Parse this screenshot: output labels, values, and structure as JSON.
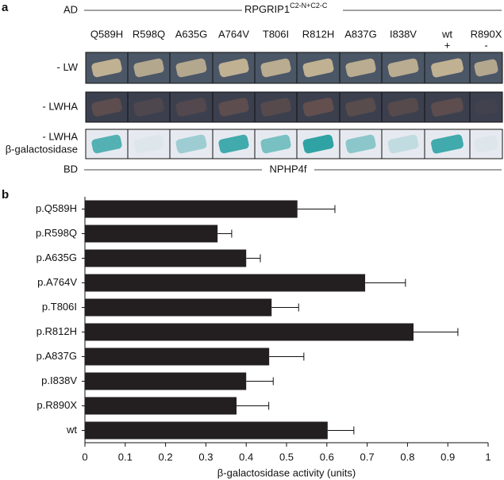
{
  "panel_a": {
    "label": "a",
    "ad_label": "AD",
    "prey": {
      "name": "RPGRIP1",
      "superscript": "C2-N+C2-C"
    },
    "columns": [
      {
        "label": "Q589H"
      },
      {
        "label": "R598Q"
      },
      {
        "label": "A635G"
      },
      {
        "label": "A764V"
      },
      {
        "label": "T806I"
      },
      {
        "label": "R812H"
      },
      {
        "label": "A837G"
      },
      {
        "label": "I838V"
      },
      {
        "label": "wt",
        "sublabel": "+"
      },
      {
        "label": "R890X",
        "sublabel": "-"
      }
    ],
    "rows": [
      {
        "label": "- LW"
      },
      {
        "label": "- LWHA"
      },
      {
        "label": "- LWHA",
        "sublabel": "β-galactosidase"
      }
    ],
    "bd_label": "BD",
    "bait": "NPHP4f"
  },
  "chart_data": {
    "type": "hbar",
    "panel_label": "b",
    "categories": [
      "p.Q589H",
      "p.R598Q",
      "p.A635G",
      "p.A764V",
      "p.T806I",
      "p.R812H",
      "p.A837G",
      "p.I838V",
      "p.R890X",
      "wt"
    ],
    "values": [
      0.527,
      0.329,
      0.4,
      0.695,
      0.463,
      0.815,
      0.457,
      0.4,
      0.376,
      0.602
    ],
    "errors": [
      0.093,
      0.035,
      0.035,
      0.1,
      0.067,
      0.11,
      0.086,
      0.067,
      0.08,
      0.065
    ],
    "color": "#231f20",
    "xlabel": "β-galactosidase activity (units)",
    "xlim": [
      0,
      1
    ],
    "xticks": [
      0,
      0.1,
      0.2,
      0.3,
      0.4,
      0.5,
      0.6,
      0.7,
      0.8,
      0.9,
      1
    ]
  }
}
